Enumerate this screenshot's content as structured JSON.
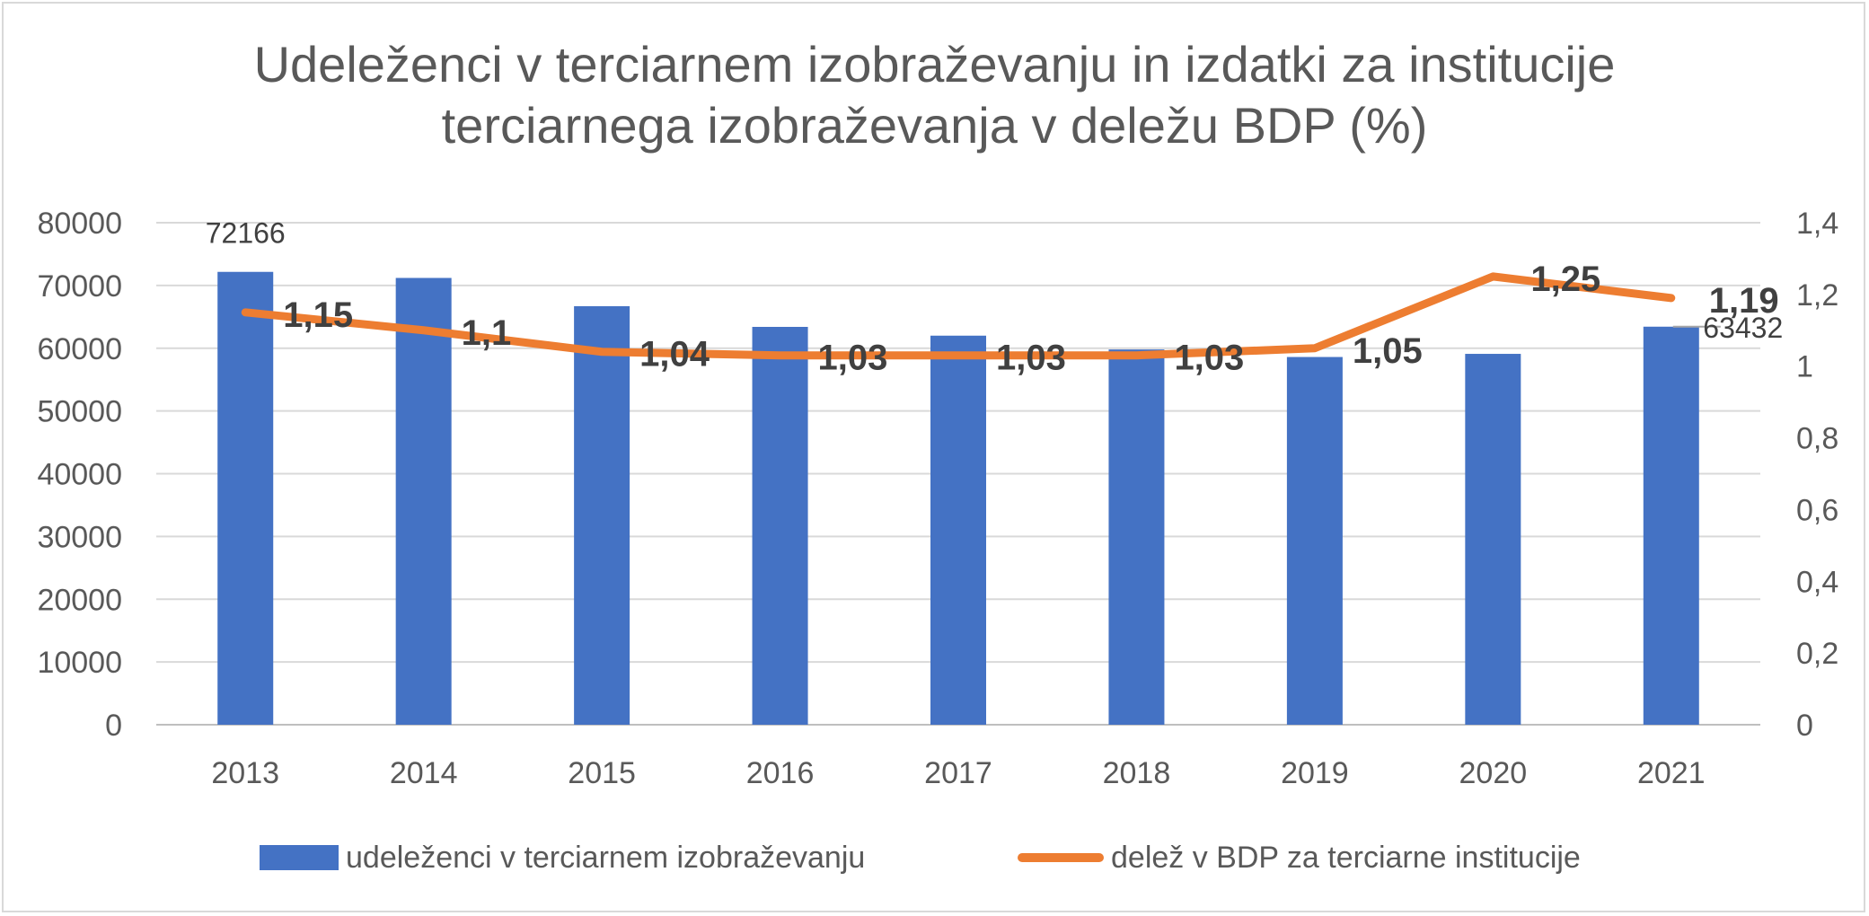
{
  "chart_data": {
    "type": "bar",
    "title": [
      "Udeleženci v terciarnem izobraževanju in izdatki za institucije",
      "terciarnega izobraževanja v deležu BDP (%)"
    ],
    "categories": [
      "2013",
      "2014",
      "2015",
      "2016",
      "2017",
      "2018",
      "2019",
      "2020",
      "2021"
    ],
    "series": [
      {
        "name": "udeleženci v terciarnem izobraževanju",
        "type": "bar",
        "axis": "left",
        "color": "#4472C4",
        "values": [
          72166,
          71200,
          66700,
          63400,
          62000,
          59800,
          58600,
          59100,
          63432
        ],
        "data_labels": {
          "0": "72166",
          "8": "63432"
        }
      },
      {
        "name": "delež v BDP za terciarne institucije",
        "type": "line",
        "axis": "right",
        "color": "#ED7D31",
        "values": [
          1.15,
          1.1,
          1.04,
          1.03,
          1.03,
          1.03,
          1.05,
          1.25,
          1.19
        ],
        "data_labels": [
          "1,15",
          "1,1",
          "1,04",
          "1,03",
          "1,03",
          "1,03",
          "1,05",
          "1,25",
          "1,19"
        ]
      }
    ],
    "y_left": {
      "min": 0,
      "max": 80000,
      "ticks": [
        "0",
        "10000",
        "20000",
        "30000",
        "40000",
        "50000",
        "60000",
        "70000",
        "80000"
      ]
    },
    "y_right": {
      "min": 0,
      "max": 1.4,
      "ticks": [
        "0",
        "0,2",
        "0,4",
        "0,6",
        "0,8",
        "1",
        "1,2",
        "1,4"
      ]
    },
    "grid": true,
    "legend_position": "bottom"
  }
}
